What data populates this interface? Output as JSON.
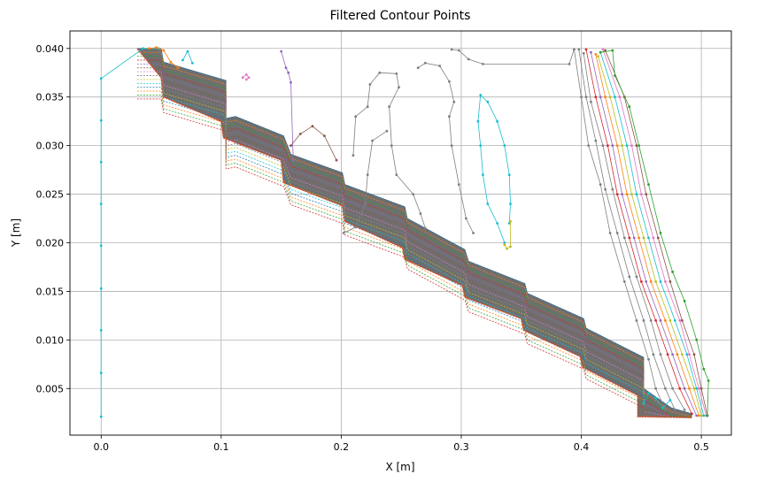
{
  "chart_data": {
    "type": "line",
    "title": "Filtered Contour Points",
    "xlabel": "X [m]",
    "ylabel": "Y [m]",
    "xlim": [
      -0.026,
      0.525
    ],
    "ylim": [
      0.0002,
      0.0418
    ],
    "xticks": [
      "0.0",
      "0.1",
      "0.2",
      "0.3",
      "0.4",
      "0.5"
    ],
    "xtick_values": [
      0.0,
      0.1,
      0.2,
      0.3,
      0.4,
      0.5
    ],
    "yticks": [
      "0.005",
      "0.010",
      "0.015",
      "0.020",
      "0.025",
      "0.030",
      "0.035",
      "0.040"
    ],
    "ytick_values": [
      0.005,
      0.01,
      0.015,
      0.02,
      0.025,
      0.03,
      0.035,
      0.04
    ],
    "grid": true,
    "legend": "none",
    "palette": [
      "#1f77b4",
      "#ff7f0e",
      "#2ca02c",
      "#d62728",
      "#9467bd",
      "#8c564b",
      "#e377c2",
      "#7f7f7f",
      "#bcbd22",
      "#17becf"
    ],
    "band": {
      "name": "",
      "upper": [
        [
          0.03,
          0.04
        ],
        [
          0.05,
          0.04
        ],
        [
          0.052,
          0.0386
        ],
        [
          0.104,
          0.0367
        ],
        [
          0.104,
          0.0328
        ],
        [
          0.112,
          0.033
        ],
        [
          0.152,
          0.031
        ],
        [
          0.158,
          0.0291
        ],
        [
          0.201,
          0.0272
        ],
        [
          0.203,
          0.026
        ],
        [
          0.253,
          0.0237
        ],
        [
          0.255,
          0.0225
        ],
        [
          0.303,
          0.0193
        ],
        [
          0.306,
          0.0181
        ],
        [
          0.353,
          0.0158
        ],
        [
          0.355,
          0.0148
        ],
        [
          0.402,
          0.0122
        ],
        [
          0.404,
          0.0112
        ],
        [
          0.452,
          0.0082
        ],
        [
          0.452,
          0.005
        ],
        [
          0.475,
          0.003
        ],
        [
          0.492,
          0.0024
        ]
      ],
      "lower": [
        [
          0.492,
          0.002
        ],
        [
          0.447,
          0.0021
        ],
        [
          0.447,
          0.0043
        ],
        [
          0.401,
          0.0072
        ],
        [
          0.399,
          0.0083
        ],
        [
          0.352,
          0.011
        ],
        [
          0.35,
          0.0122
        ],
        [
          0.303,
          0.0144
        ],
        [
          0.301,
          0.0156
        ],
        [
          0.253,
          0.0183
        ],
        [
          0.251,
          0.0195
        ],
        [
          0.203,
          0.0222
        ],
        [
          0.201,
          0.0238
        ],
        [
          0.152,
          0.0262
        ],
        [
          0.15,
          0.0285
        ],
        [
          0.102,
          0.0308
        ],
        [
          0.1,
          0.0325
        ],
        [
          0.052,
          0.035
        ],
        [
          0.05,
          0.037
        ],
        [
          0.03,
          0.04
        ]
      ],
      "layers": 14,
      "layer_dy": 0.0004
    },
    "series": [
      {
        "name": "",
        "color": "#17becf",
        "points": [
          [
            0.0,
            0.0021
          ],
          [
            0.0,
            0.0066
          ],
          [
            0.0,
            0.011
          ],
          [
            0.0,
            0.0153
          ],
          [
            0.0,
            0.0197
          ],
          [
            0.0,
            0.024
          ],
          [
            0.0,
            0.0283
          ],
          [
            0.0,
            0.0326
          ],
          [
            0.0,
            0.0369
          ],
          [
            0.035,
            0.04
          ],
          [
            0.048,
            0.04
          ]
        ]
      },
      {
        "name": "",
        "color": "#7f7f7f",
        "points": [
          [
            0.21,
            0.029
          ],
          [
            0.212,
            0.033
          ],
          [
            0.222,
            0.034
          ],
          [
            0.224,
            0.0363
          ],
          [
            0.232,
            0.0375
          ],
          [
            0.246,
            0.0374
          ],
          [
            0.248,
            0.036
          ],
          [
            0.24,
            0.034
          ],
          [
            0.242,
            0.03
          ],
          [
            0.246,
            0.027
          ],
          [
            0.26,
            0.025
          ],
          [
            0.266,
            0.023
          ],
          [
            0.27,
            0.0215
          ]
        ]
      },
      {
        "name": "",
        "color": "#7f7f7f",
        "points": [
          [
            0.264,
            0.038
          ],
          [
            0.27,
            0.0385
          ],
          [
            0.282,
            0.0382
          ],
          [
            0.29,
            0.0366
          ],
          [
            0.294,
            0.0345
          ],
          [
            0.29,
            0.033
          ],
          [
            0.292,
            0.03
          ],
          [
            0.298,
            0.026
          ],
          [
            0.304,
            0.0225
          ],
          [
            0.31,
            0.021
          ]
        ]
      },
      {
        "name": "",
        "color": "#7f7f7f",
        "points": [
          [
            0.292,
            0.0399
          ],
          [
            0.298,
            0.0398
          ],
          [
            0.306,
            0.0389
          ],
          [
            0.318,
            0.0384
          ],
          [
            0.39,
            0.0384
          ],
          [
            0.394,
            0.0399
          ]
        ]
      },
      {
        "name": "",
        "color": "#7f7f7f",
        "points": [
          [
            0.202,
            0.021
          ],
          [
            0.212,
            0.0216
          ],
          [
            0.22,
            0.024
          ],
          [
            0.222,
            0.027
          ],
          [
            0.226,
            0.0305
          ],
          [
            0.238,
            0.0315
          ]
        ]
      },
      {
        "name": "",
        "color": "#7f7f7f",
        "points": [
          [
            0.394,
            0.0399
          ],
          [
            0.4,
            0.035
          ],
          [
            0.406,
            0.03
          ],
          [
            0.416,
            0.026
          ],
          [
            0.424,
            0.021
          ],
          [
            0.436,
            0.016
          ],
          [
            0.446,
            0.012
          ],
          [
            0.456,
            0.008
          ],
          [
            0.462,
            0.005
          ],
          [
            0.47,
            0.0028
          ]
        ]
      },
      {
        "name": "",
        "color": "#7f7f7f",
        "points": [
          [
            0.398,
            0.0399
          ],
          [
            0.404,
            0.035
          ],
          [
            0.412,
            0.0305
          ],
          [
            0.42,
            0.0255
          ],
          [
            0.43,
            0.021
          ],
          [
            0.44,
            0.0165
          ],
          [
            0.452,
            0.012
          ],
          [
            0.46,
            0.0085
          ],
          [
            0.47,
            0.005
          ],
          [
            0.478,
            0.0028
          ]
        ]
      },
      {
        "name": "",
        "color": "#7f7f7f",
        "points": [
          [
            0.402,
            0.0395
          ],
          [
            0.408,
            0.0345
          ],
          [
            0.418,
            0.03
          ],
          [
            0.426,
            0.0255
          ],
          [
            0.436,
            0.0205
          ],
          [
            0.446,
            0.0165
          ],
          [
            0.458,
            0.012
          ],
          [
            0.466,
            0.0085
          ],
          [
            0.476,
            0.005
          ],
          [
            0.486,
            0.0028
          ]
        ]
      },
      {
        "name": "",
        "color": "#d62728",
        "points": [
          [
            0.404,
            0.0399
          ],
          [
            0.412,
            0.035
          ],
          [
            0.422,
            0.03
          ],
          [
            0.43,
            0.025
          ],
          [
            0.44,
            0.0205
          ],
          [
            0.45,
            0.016
          ],
          [
            0.462,
            0.012
          ],
          [
            0.472,
            0.0085
          ],
          [
            0.482,
            0.005
          ],
          [
            0.492,
            0.0024
          ]
        ]
      },
      {
        "name": "",
        "color": "#9467bd",
        "points": [
          [
            0.408,
            0.0396
          ],
          [
            0.416,
            0.035
          ],
          [
            0.426,
            0.03
          ],
          [
            0.434,
            0.025
          ],
          [
            0.444,
            0.0205
          ],
          [
            0.454,
            0.016
          ],
          [
            0.466,
            0.012
          ],
          [
            0.476,
            0.0085
          ],
          [
            0.486,
            0.005
          ],
          [
            0.496,
            0.0022
          ]
        ]
      },
      {
        "name": "",
        "color": "#ff7f0e",
        "points": [
          [
            0.412,
            0.0394
          ],
          [
            0.42,
            0.035
          ],
          [
            0.43,
            0.03
          ],
          [
            0.438,
            0.025
          ],
          [
            0.448,
            0.0205
          ],
          [
            0.458,
            0.016
          ],
          [
            0.47,
            0.012
          ],
          [
            0.48,
            0.0085
          ],
          [
            0.49,
            0.005
          ],
          [
            0.498,
            0.0022
          ]
        ]
      },
      {
        "name": "",
        "color": "#bcbd22",
        "points": [
          [
            0.414,
            0.0392
          ],
          [
            0.424,
            0.035
          ],
          [
            0.434,
            0.03
          ],
          [
            0.442,
            0.025
          ],
          [
            0.452,
            0.0205
          ],
          [
            0.462,
            0.016
          ],
          [
            0.474,
            0.012
          ],
          [
            0.484,
            0.0085
          ],
          [
            0.494,
            0.005
          ],
          [
            0.5,
            0.0022
          ]
        ]
      },
      {
        "name": "",
        "color": "#17becf",
        "points": [
          [
            0.416,
            0.0396
          ],
          [
            0.428,
            0.035
          ],
          [
            0.438,
            0.03
          ],
          [
            0.446,
            0.025
          ],
          [
            0.456,
            0.0205
          ],
          [
            0.466,
            0.016
          ],
          [
            0.478,
            0.012
          ],
          [
            0.488,
            0.0085
          ],
          [
            0.496,
            0.005
          ],
          [
            0.502,
            0.0022
          ]
        ]
      },
      {
        "name": "",
        "color": "#e377c2",
        "points": [
          [
            0.418,
            0.0399
          ],
          [
            0.432,
            0.035
          ],
          [
            0.442,
            0.03
          ],
          [
            0.45,
            0.025
          ],
          [
            0.46,
            0.0205
          ],
          [
            0.47,
            0.016
          ],
          [
            0.482,
            0.012
          ],
          [
            0.49,
            0.0085
          ],
          [
            0.498,
            0.005
          ],
          [
            0.504,
            0.0022
          ]
        ]
      },
      {
        "name": "",
        "color": "#8c564b",
        "points": [
          [
            0.42,
            0.0398
          ],
          [
            0.436,
            0.035
          ],
          [
            0.446,
            0.03
          ],
          [
            0.454,
            0.025
          ],
          [
            0.464,
            0.0205
          ],
          [
            0.474,
            0.016
          ],
          [
            0.484,
            0.012
          ],
          [
            0.494,
            0.0085
          ],
          [
            0.5,
            0.005
          ],
          [
            0.505,
            0.0022
          ]
        ]
      },
      {
        "name": "",
        "color": "#2ca02c",
        "points": [
          [
            0.416,
            0.0396
          ],
          [
            0.426,
            0.0398
          ],
          [
            0.428,
            0.0372
          ],
          [
            0.44,
            0.034
          ],
          [
            0.448,
            0.03
          ],
          [
            0.456,
            0.026
          ],
          [
            0.466,
            0.021
          ],
          [
            0.476,
            0.017
          ],
          [
            0.486,
            0.014
          ],
          [
            0.496,
            0.01
          ],
          [
            0.502,
            0.007
          ],
          [
            0.506,
            0.0058
          ],
          [
            0.505,
            0.0022
          ]
        ]
      },
      {
        "name": "",
        "color": "#17becf",
        "points": [
          [
            0.336,
            0.02
          ],
          [
            0.33,
            0.022
          ],
          [
            0.322,
            0.024
          ],
          [
            0.318,
            0.027
          ],
          [
            0.316,
            0.03
          ],
          [
            0.314,
            0.0325
          ],
          [
            0.316,
            0.0352
          ],
          [
            0.322,
            0.0345
          ],
          [
            0.33,
            0.0325
          ],
          [
            0.336,
            0.03
          ],
          [
            0.34,
            0.027
          ],
          [
            0.341,
            0.024
          ],
          [
            0.34,
            0.022
          ]
        ]
      },
      {
        "name": "",
        "color": "#bcbd22",
        "points": [
          [
            0.336,
            0.0198
          ],
          [
            0.338,
            0.0194
          ],
          [
            0.341,
            0.0196
          ],
          [
            0.341,
            0.0222
          ]
        ]
      },
      {
        "name": "",
        "color": "#9467bd",
        "points": [
          [
            0.15,
            0.0397
          ],
          [
            0.154,
            0.038
          ],
          [
            0.156,
            0.0375
          ],
          [
            0.158,
            0.0365
          ],
          [
            0.16,
            0.0285
          ]
        ]
      },
      {
        "name": "",
        "color": "#8c564b",
        "points": [
          [
            0.158,
            0.03
          ],
          [
            0.166,
            0.0312
          ],
          [
            0.176,
            0.032
          ],
          [
            0.186,
            0.031
          ],
          [
            0.196,
            0.0285
          ]
        ]
      },
      {
        "name": "",
        "color": "#e377c2",
        "points": [
          [
            0.118,
            0.037
          ],
          [
            0.121,
            0.0373
          ],
          [
            0.123,
            0.037
          ],
          [
            0.121,
            0.0368
          ]
        ]
      },
      {
        "name": "",
        "color": "#ff7f0e",
        "points": [
          [
            0.04,
            0.04
          ],
          [
            0.046,
            0.0401
          ],
          [
            0.052,
            0.0398
          ],
          [
            0.058,
            0.0386
          ],
          [
            0.064,
            0.038
          ]
        ]
      },
      {
        "name": "",
        "color": "#17becf",
        "points": [
          [
            0.068,
            0.0388
          ],
          [
            0.072,
            0.0397
          ],
          [
            0.076,
            0.0385
          ]
        ]
      },
      {
        "name": "",
        "color": "#17becf",
        "points": [
          [
            0.452,
            0.0035
          ],
          [
            0.456,
            0.0045
          ],
          [
            0.462,
            0.004
          ],
          [
            0.468,
            0.003
          ],
          [
            0.474,
            0.0038
          ]
        ]
      }
    ]
  }
}
